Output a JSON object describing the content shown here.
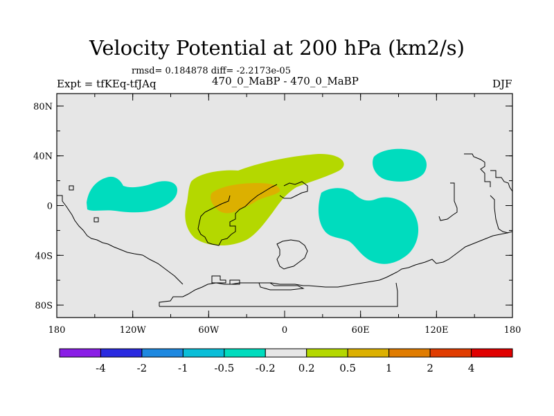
{
  "plot": {
    "title": "Velocity Potential at 200 hPa (km2/s)",
    "stats": "rmsd= 0.184878  diff= -2.2173e-05",
    "experiment": "Expt = tfKEq-tfJAq",
    "case": "470_0_MaBP - 470_0_MaBP",
    "season": "DJF"
  },
  "map": {
    "lon_range": [
      -180,
      180
    ],
    "lat_range": [
      -90,
      90
    ],
    "x_ticks": [
      "180",
      "120W",
      "60W",
      "0",
      "60E",
      "120E",
      "180"
    ],
    "y_ticks": [
      "80N",
      "40N",
      "0",
      "40S",
      "80S"
    ],
    "background_color": "#e6e6e6",
    "outline_color": "#000000"
  },
  "colorbar": {
    "colors": [
      "#8a1ee6",
      "#2a2ae0",
      "#1e88e0",
      "#0abed8",
      "#00dcbe",
      "#e6e6e6",
      "#b4d800",
      "#dcb000",
      "#e07c00",
      "#e03c00",
      "#e00000"
    ],
    "labels": [
      "-4",
      "-2",
      "-1",
      "-0.5",
      "-0.2",
      "0.2",
      "0.5",
      "1",
      "2",
      "4"
    ]
  }
}
